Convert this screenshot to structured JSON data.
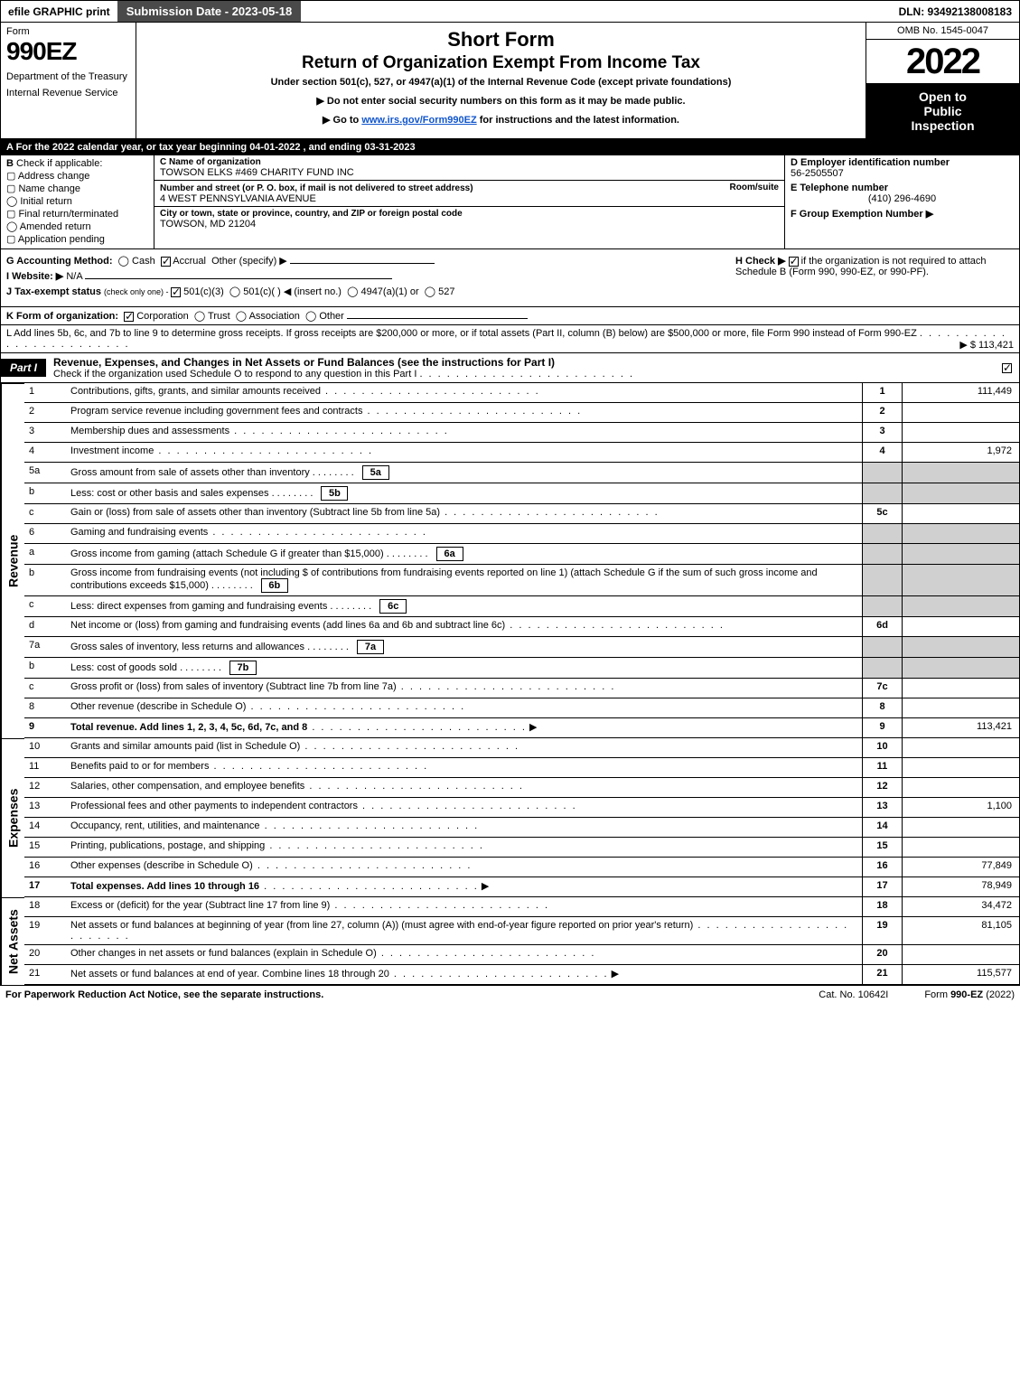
{
  "topbar": {
    "efile": "efile GRAPHIC print",
    "subdate": "Submission Date - 2023-05-18",
    "dln": "DLN: 93492138008183"
  },
  "header": {
    "form_word": "Form",
    "form_num": "990EZ",
    "dept": "Department of the Treasury",
    "irs": "Internal Revenue Service",
    "title1": "Short Form",
    "title2": "Return of Organization Exempt From Income Tax",
    "subtitle": "Under section 501(c), 527, or 4947(a)(1) of the Internal Revenue Code (except private foundations)",
    "note1": "▶ Do not enter social security numbers on this form as it may be made public.",
    "note2": "▶ Go to www.irs.gov/Form990EZ for instructions and the latest information.",
    "omb": "OMB No. 1545-0047",
    "year": "2022",
    "open1": "Open to",
    "open2": "Public",
    "open3": "Inspection"
  },
  "lineA": "A  For the 2022 calendar year, or tax year beginning 04-01-2022 , and ending 03-31-2023",
  "B": {
    "label": "B",
    "hint": "Check if applicable:",
    "opts": [
      "Address change",
      "Name change",
      "Initial return",
      "Final return/terminated",
      "Amended return",
      "Application pending"
    ]
  },
  "C": {
    "name_lbl": "C Name of organization",
    "name": "TOWSON ELKS #469 CHARITY FUND INC",
    "addr_lbl": "Number and street (or P. O. box, if mail is not delivered to street address)",
    "room_lbl": "Room/suite",
    "addr": "4 WEST PENNSYLVANIA AVENUE",
    "city_lbl": "City or town, state or province, country, and ZIP or foreign postal code",
    "city": "TOWSON, MD  21204"
  },
  "DEF": {
    "d_lbl": "D Employer identification number",
    "d_val": "56-2505507",
    "e_lbl": "E Telephone number",
    "e_val": "(410) 296-4690",
    "f_lbl": "F Group Exemption Number   ▶"
  },
  "G": {
    "label": "G Accounting Method:",
    "cash": "Cash",
    "accrual": "Accrual",
    "other": "Other (specify) ▶"
  },
  "H": {
    "text": "H  Check ▶ ",
    "rest": " if the organization is not required to attach Schedule B (Form 990, 990-EZ, or 990-PF)."
  },
  "I": {
    "label": "I Website: ▶",
    "val": "N/A"
  },
  "J": {
    "label": "J Tax-exempt status",
    "hint": "(check only one) - ",
    "o1": "501(c)(3)",
    "o2": "501(c)(  ) ◀ (insert no.)",
    "o3": "4947(a)(1) or",
    "o4": "527"
  },
  "K": {
    "label": "K Form of organization:",
    "opts": [
      "Corporation",
      "Trust",
      "Association",
      "Other"
    ]
  },
  "L": {
    "text": "L Add lines 5b, 6c, and 7b to line 9 to determine gross receipts. If gross receipts are $200,000 or more, or if total assets (Part II, column (B) below) are $500,000 or more, file Form 990 instead of Form 990-EZ",
    "amount": "▶ $ 113,421"
  },
  "part1": {
    "tab": "Part I",
    "title": "Revenue, Expenses, and Changes in Net Assets or Fund Balances (see the instructions for Part I)",
    "sub": "Check if the organization used Schedule O to respond to any question in this Part I"
  },
  "sidelabels": {
    "rev": "Revenue",
    "exp": "Expenses",
    "na": "Net Assets"
  },
  "rows": [
    {
      "n": "1",
      "d": "Contributions, gifts, grants, and similar amounts received",
      "c": "1",
      "a": "111,449"
    },
    {
      "n": "2",
      "d": "Program service revenue including government fees and contracts",
      "c": "2",
      "a": ""
    },
    {
      "n": "3",
      "d": "Membership dues and assessments",
      "c": "3",
      "a": ""
    },
    {
      "n": "4",
      "d": "Investment income",
      "c": "4",
      "a": "1,972"
    },
    {
      "n": "5a",
      "d": "Gross amount from sale of assets other than inventory",
      "inset": "5a",
      "c": "",
      "a": "",
      "shade": true
    },
    {
      "n": "b",
      "d": "Less: cost or other basis and sales expenses",
      "inset": "5b",
      "c": "",
      "a": "",
      "shade": true
    },
    {
      "n": "c",
      "d": "Gain or (loss) from sale of assets other than inventory (Subtract line 5b from line 5a)",
      "c": "5c",
      "a": ""
    },
    {
      "n": "6",
      "d": "Gaming and fundraising events",
      "c": "",
      "a": "",
      "shade": true
    },
    {
      "n": "a",
      "d": "Gross income from gaming (attach Schedule G if greater than $15,000)",
      "inset": "6a",
      "c": "",
      "a": "",
      "shade": true
    },
    {
      "n": "b",
      "d": "Gross income from fundraising events (not including $                    of contributions from fundraising events reported on line 1) (attach Schedule G if the sum of such gross income and contributions exceeds $15,000)",
      "inset": "6b",
      "c": "",
      "a": "",
      "shade": true
    },
    {
      "n": "c",
      "d": "Less: direct expenses from gaming and fundraising events",
      "inset": "6c",
      "c": "",
      "a": "",
      "shade": true
    },
    {
      "n": "d",
      "d": "Net income or (loss) from gaming and fundraising events (add lines 6a and 6b and subtract line 6c)",
      "c": "6d",
      "a": ""
    },
    {
      "n": "7a",
      "d": "Gross sales of inventory, less returns and allowances",
      "inset": "7a",
      "c": "",
      "a": "",
      "shade": true
    },
    {
      "n": "b",
      "d": "Less: cost of goods sold",
      "inset": "7b",
      "c": "",
      "a": "",
      "shade": true
    },
    {
      "n": "c",
      "d": "Gross profit or (loss) from sales of inventory (Subtract line 7b from line 7a)",
      "c": "7c",
      "a": ""
    },
    {
      "n": "8",
      "d": "Other revenue (describe in Schedule O)",
      "c": "8",
      "a": ""
    },
    {
      "n": "9",
      "d": "Total revenue. Add lines 1, 2, 3, 4, 5c, 6d, 7c, and 8",
      "c": "9",
      "a": "113,421",
      "bold": true,
      "arrow": true
    }
  ],
  "rows_exp": [
    {
      "n": "10",
      "d": "Grants and similar amounts paid (list in Schedule O)",
      "c": "10",
      "a": ""
    },
    {
      "n": "11",
      "d": "Benefits paid to or for members",
      "c": "11",
      "a": ""
    },
    {
      "n": "12",
      "d": "Salaries, other compensation, and employee benefits",
      "c": "12",
      "a": ""
    },
    {
      "n": "13",
      "d": "Professional fees and other payments to independent contractors",
      "c": "13",
      "a": "1,100"
    },
    {
      "n": "14",
      "d": "Occupancy, rent, utilities, and maintenance",
      "c": "14",
      "a": ""
    },
    {
      "n": "15",
      "d": "Printing, publications, postage, and shipping",
      "c": "15",
      "a": ""
    },
    {
      "n": "16",
      "d": "Other expenses (describe in Schedule O)",
      "c": "16",
      "a": "77,849"
    },
    {
      "n": "17",
      "d": "Total expenses. Add lines 10 through 16",
      "c": "17",
      "a": "78,949",
      "bold": true,
      "arrow": true
    }
  ],
  "rows_na": [
    {
      "n": "18",
      "d": "Excess or (deficit) for the year (Subtract line 17 from line 9)",
      "c": "18",
      "a": "34,472"
    },
    {
      "n": "19",
      "d": "Net assets or fund balances at beginning of year (from line 27, column (A)) (must agree with end-of-year figure reported on prior year's return)",
      "c": "19",
      "a": "81,105"
    },
    {
      "n": "20",
      "d": "Other changes in net assets or fund balances (explain in Schedule O)",
      "c": "20",
      "a": ""
    },
    {
      "n": "21",
      "d": "Net assets or fund balances at end of year. Combine lines 18 through 20",
      "c": "21",
      "a": "115,577",
      "arrow": true
    }
  ],
  "footer": {
    "left": "For Paperwork Reduction Act Notice, see the separate instructions.",
    "mid": "Cat. No. 10642I",
    "right": "Form 990-EZ (2022)"
  },
  "colors": {
    "black": "#000000",
    "darkgray": "#4a4a4a",
    "shade": "#d0d0d0",
    "link": "#1155cc"
  }
}
